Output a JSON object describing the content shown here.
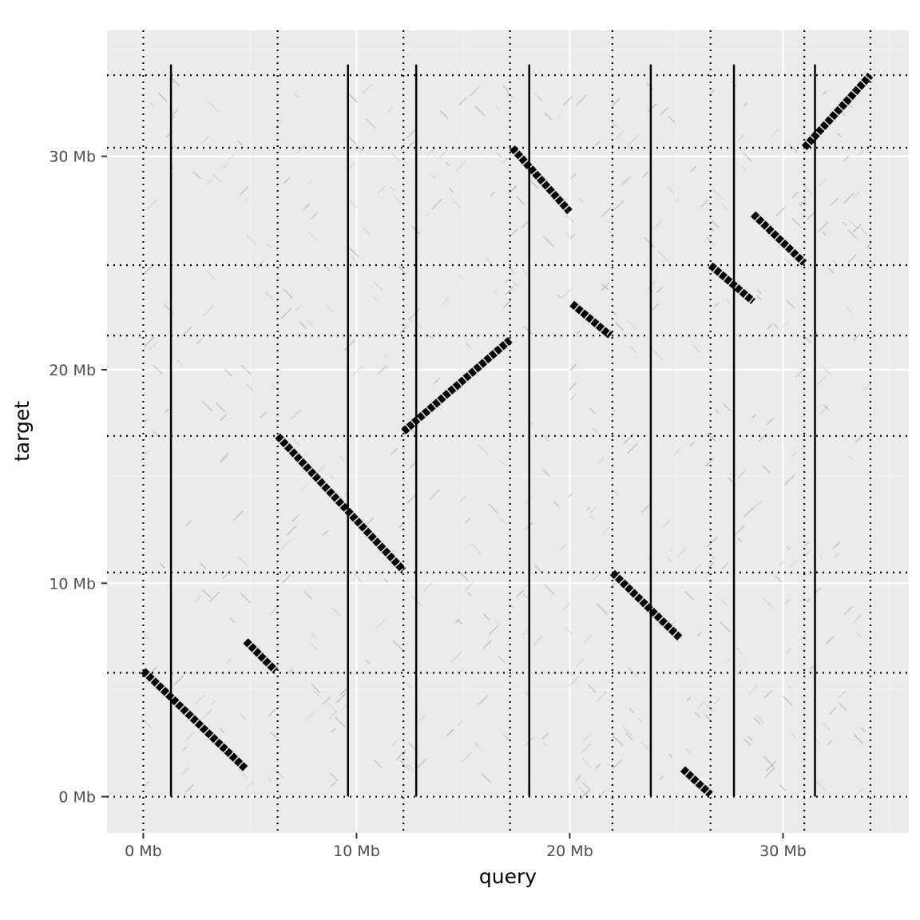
{
  "chart_data": {
    "type": "scatter",
    "title": "",
    "xlabel": "query",
    "ylabel": "target",
    "xlim": [
      -1.7,
      35.9
    ],
    "ylim": [
      -1.7,
      35.9
    ],
    "x_ticks": [
      0,
      10,
      20,
      30
    ],
    "x_tick_labels": [
      "0 Mb",
      "10 Mb",
      "20 Mb",
      "30 Mb"
    ],
    "y_ticks": [
      0,
      10,
      20,
      30
    ],
    "y_tick_labels": [
      "0 Mb",
      "10 Mb",
      "20 Mb",
      "30 Mb"
    ],
    "grid": true,
    "query_boundaries_dotted": [
      0,
      6.3,
      12.2,
      17.2,
      22.0,
      26.6,
      31.0,
      34.1
    ],
    "target_boundaries_dotted": [
      0,
      5.8,
      10.5,
      16.9,
      21.6,
      24.9,
      30.4,
      33.8
    ],
    "query_markers_solid": [
      1.3,
      9.6,
      12.8,
      18.1,
      23.8,
      27.7,
      31.5
    ],
    "solid_marker_range": [
      0,
      34.3
    ],
    "alignment_segments": [
      {
        "x0": 0.0,
        "y0": 5.9,
        "x1": 4.8,
        "y1": 1.3
      },
      {
        "x0": 4.8,
        "y0": 7.3,
        "x1": 6.2,
        "y1": 5.9
      },
      {
        "x0": 6.3,
        "y0": 16.9,
        "x1": 12.2,
        "y1": 10.6
      },
      {
        "x0": 12.2,
        "y0": 17.1,
        "x1": 17.2,
        "y1": 21.4
      },
      {
        "x0": 17.3,
        "y0": 30.4,
        "x1": 20.0,
        "y1": 27.4
      },
      {
        "x0": 20.1,
        "y0": 23.1,
        "x1": 21.9,
        "y1": 21.6
      },
      {
        "x0": 22.0,
        "y0": 10.5,
        "x1": 25.2,
        "y1": 7.4
      },
      {
        "x0": 25.3,
        "y0": 1.3,
        "x1": 26.6,
        "y1": 0.1
      },
      {
        "x0": 26.6,
        "y0": 24.9,
        "x1": 28.6,
        "y1": 23.2
      },
      {
        "x0": 28.6,
        "y0": 27.3,
        "x1": 31.0,
        "y1": 25.0
      },
      {
        "x0": 31.0,
        "y0": 30.4,
        "x1": 34.1,
        "y1": 33.8
      }
    ]
  }
}
